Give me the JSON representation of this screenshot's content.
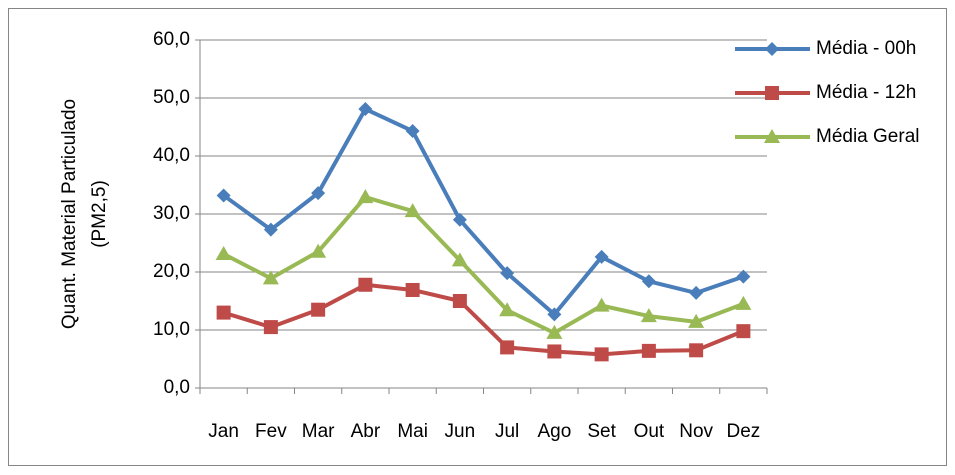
{
  "chart_data": {
    "type": "line",
    "ylabel": [
      "Quant. Material Particulado",
      "(PM2,5)"
    ],
    "categories": [
      "Jan",
      "Fev",
      "Mar",
      "Abr",
      "Mai",
      "Jun",
      "Jul",
      "Ago",
      "Set",
      "Out",
      "Nov",
      "Dez"
    ],
    "series": [
      {
        "name": "Média - 00h",
        "color": "#4a7ebb",
        "marker": "diamond",
        "values": [
          33.2,
          27.3,
          33.6,
          48.1,
          44.3,
          29.0,
          19.8,
          12.7,
          22.6,
          18.4,
          16.4,
          19.2
        ]
      },
      {
        "name": "Média - 12h",
        "color": "#be4b48",
        "marker": "square",
        "values": [
          13.0,
          10.5,
          13.5,
          17.8,
          16.9,
          15.0,
          7.0,
          6.3,
          5.8,
          6.4,
          6.5,
          9.8
        ]
      },
      {
        "name": "Média Geral",
        "color": "#98b954",
        "marker": "triangle",
        "values": [
          23.1,
          18.9,
          23.5,
          32.9,
          30.5,
          22.0,
          13.4,
          9.5,
          14.2,
          12.4,
          11.4,
          14.5
        ]
      }
    ],
    "ylim": [
      0,
      60
    ],
    "yticks": [
      {
        "value": 0,
        "label": "0,0"
      },
      {
        "value": 10,
        "label": "10,0"
      },
      {
        "value": 20,
        "label": "20,0"
      },
      {
        "value": 30,
        "label": "30,0"
      },
      {
        "value": 40,
        "label": "40,0"
      },
      {
        "value": 50,
        "label": "50,0"
      },
      {
        "value": 60,
        "label": "60,0"
      }
    ],
    "grid": true,
    "legend": "right"
  }
}
